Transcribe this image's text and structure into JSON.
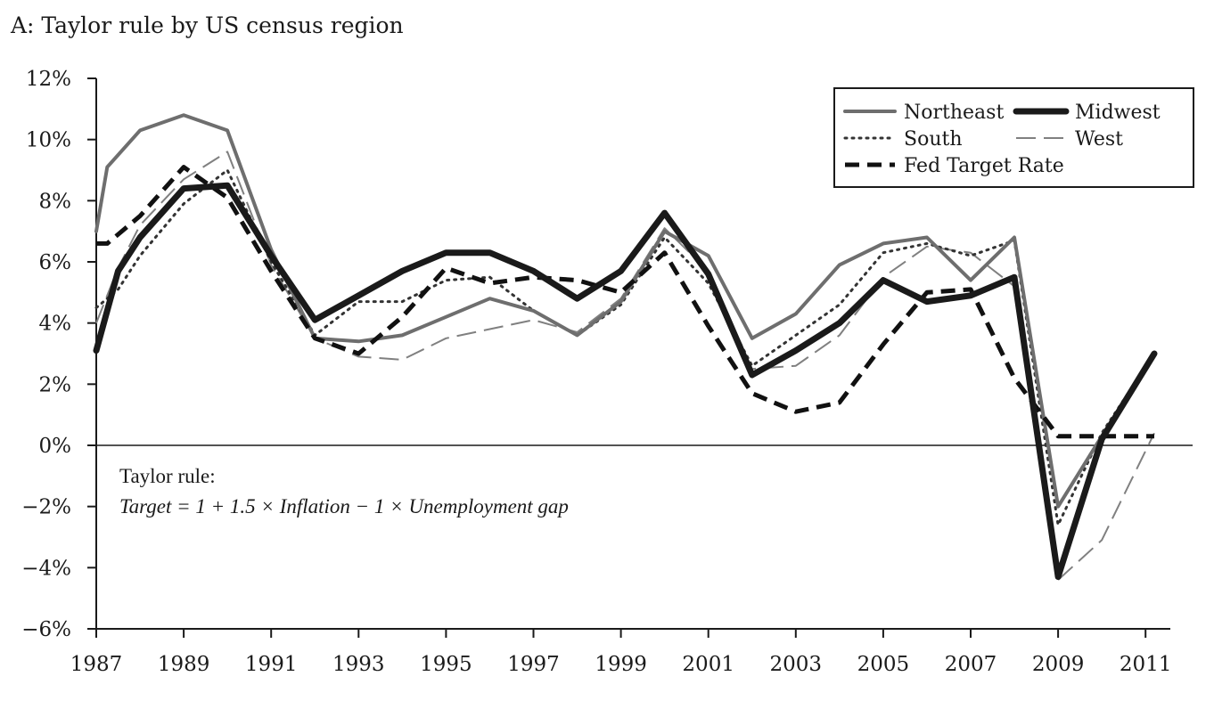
{
  "chart_data": {
    "type": "line",
    "title": "A: Taylor rule by US census region",
    "xlabel": "",
    "ylabel": "",
    "xlim": [
      1987,
      2011.3
    ],
    "ylim": [
      -6,
      12
    ],
    "x_ticks": [
      1987,
      1989,
      1991,
      1993,
      1995,
      1997,
      1999,
      2001,
      2003,
      2005,
      2007,
      2009,
      2011
    ],
    "y_ticks": [
      {
        "value": 12,
        "label": "12%"
      },
      {
        "value": 10,
        "label": "10%"
      },
      {
        "value": 8,
        "label": "8%"
      },
      {
        "value": 6,
        "label": "6%"
      },
      {
        "value": 4,
        "label": "4%"
      },
      {
        "value": 2,
        "label": "2%"
      },
      {
        "value": 0,
        "label": "0%"
      },
      {
        "value": -2,
        "label": "−2%"
      },
      {
        "value": -4,
        "label": "−4%"
      },
      {
        "value": -6,
        "label": "−6%"
      }
    ],
    "legend_position": "top-right",
    "annotation": {
      "line1": "Taylor rule:",
      "line2": "Target = 1 + 1.5 × Inflation − 1 × Unemployment gap"
    },
    "series": [
      {
        "name": "Northeast",
        "color": "#6e6e6e",
        "style": "solid-medium",
        "x": [
          1987,
          1987.25,
          1988,
          1989,
          1990,
          1991,
          1992,
          1993,
          1994,
          1995,
          1996,
          1997,
          1998,
          1999,
          2000,
          2001,
          2002,
          2003,
          2004,
          2005,
          2006,
          2007,
          2008,
          2009,
          2010,
          2011.2
        ],
        "y": [
          7.0,
          9.1,
          10.3,
          10.8,
          10.3,
          6.4,
          3.5,
          3.4,
          3.6,
          4.2,
          4.8,
          4.4,
          3.6,
          4.7,
          7.0,
          6.2,
          3.5,
          4.3,
          5.9,
          6.6,
          6.8,
          5.4,
          6.8,
          -2.0,
          0.3,
          3.0
        ]
      },
      {
        "name": "Midwest",
        "color": "#1a1a1a",
        "style": "solid-thick",
        "x": [
          1987,
          1987.5,
          1988,
          1989,
          1990,
          1991,
          1992,
          1993,
          1994,
          1995,
          1996,
          1997,
          1998,
          1999,
          2000,
          2001,
          2002,
          2003,
          2004,
          2005,
          2006,
          2007,
          2008,
          2009,
          2010,
          2011.2
        ],
        "y": [
          3.1,
          5.7,
          6.8,
          8.4,
          8.5,
          6.2,
          4.1,
          4.9,
          5.7,
          6.3,
          6.3,
          5.7,
          4.8,
          5.7,
          7.6,
          5.6,
          2.3,
          3.1,
          4.0,
          5.4,
          4.7,
          4.9,
          5.5,
          -4.3,
          0.2,
          3.0
        ]
      },
      {
        "name": "South",
        "color": "#333333",
        "style": "dotted",
        "x": [
          1987,
          1987.5,
          1988,
          1989,
          1990,
          1991,
          1992,
          1993,
          1994,
          1995,
          1996,
          1997,
          1998,
          1999,
          2000,
          2001,
          2002,
          2003,
          2004,
          2005,
          2006,
          2007,
          2008,
          2009,
          2010,
          2011.2
        ],
        "y": [
          4.5,
          5.1,
          6.2,
          7.9,
          9.0,
          6.0,
          3.6,
          4.7,
          4.7,
          5.4,
          5.5,
          4.4,
          3.6,
          4.6,
          6.8,
          5.3,
          2.6,
          3.6,
          4.6,
          6.3,
          6.6,
          6.2,
          6.7,
          -2.6,
          0.4,
          3.0
        ]
      },
      {
        "name": "West",
        "color": "#808080",
        "style": "long-dash",
        "x": [
          1987,
          1987.5,
          1988,
          1989,
          1990,
          1991,
          1992,
          1993,
          1994,
          1995,
          1996,
          1997,
          1998,
          1999,
          2000,
          2001,
          2002,
          2003,
          2004,
          2005,
          2006,
          2007,
          2008,
          2009,
          2010,
          2011.2
        ],
        "y": [
          4.0,
          5.8,
          7.2,
          8.7,
          9.6,
          5.9,
          3.5,
          2.9,
          2.8,
          3.5,
          3.8,
          4.1,
          3.7,
          4.8,
          7.1,
          5.7,
          2.5,
          2.6,
          3.6,
          5.5,
          6.5,
          6.3,
          5.2,
          -4.4,
          -3.1,
          0.4
        ]
      },
      {
        "name": "Fed Target Rate",
        "color": "#111111",
        "style": "short-dash",
        "x": [
          1987,
          1987.25,
          1988,
          1989,
          1990,
          1991,
          1992,
          1993,
          1994,
          1995,
          1996,
          1997,
          1998,
          1999,
          2000,
          2001,
          2002,
          2003,
          2004,
          2005,
          2006,
          2007,
          2008,
          2009,
          2010,
          2011.2
        ],
        "y": [
          6.6,
          6.6,
          7.5,
          9.1,
          8.1,
          5.7,
          3.5,
          3.0,
          4.2,
          5.8,
          5.3,
          5.5,
          5.4,
          5.0,
          6.3,
          3.9,
          1.7,
          1.1,
          1.4,
          3.3,
          5.0,
          5.1,
          2.2,
          0.3,
          0.3,
          0.3
        ]
      }
    ]
  }
}
